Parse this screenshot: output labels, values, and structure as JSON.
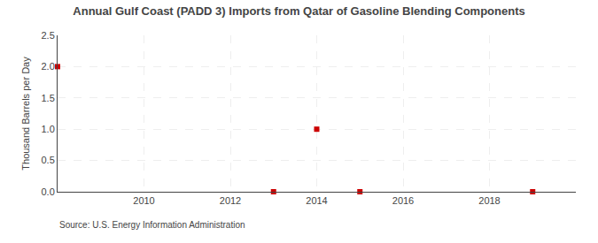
{
  "chart_data": {
    "type": "scatter",
    "title": "Annual Gulf Coast (PADD 3) Imports from Qatar of Gasoline Blending Components",
    "y_label": "Thousand Barrels per Day",
    "annotations": [
      "Source: U.S. Energy Information Administration"
    ],
    "x": [
      2008,
      2013,
      2014,
      2015,
      2019
    ],
    "values": [
      2.0,
      0.0,
      1.0,
      0.0,
      0.0
    ],
    "color": "#cc0000",
    "marker": "square",
    "xlim": [
      2008.0,
      2020.0
    ],
    "ylim": [
      0.0,
      2.5
    ],
    "xticks": [
      2010,
      2012,
      2014,
      2016,
      2018
    ],
    "yticks": [
      {
        "value": 0.0,
        "label": "0.0"
      },
      0.5,
      {
        "value": 1.0,
        "label": "1.0"
      },
      1.5,
      {
        "value": 2.0,
        "label": "2.0"
      },
      2.5
    ],
    "grid": true
  }
}
